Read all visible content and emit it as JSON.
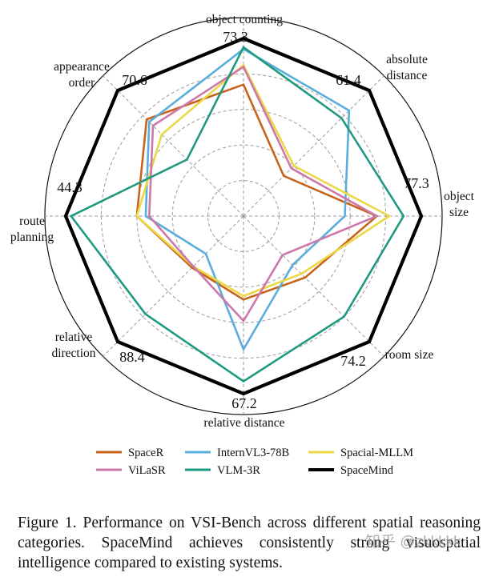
{
  "chart_data": {
    "type": "radar",
    "axes": [
      {
        "label": [
          "object counting"
        ],
        "max": "73.3"
      },
      {
        "label": [
          "absolute",
          "distance"
        ],
        "max": "61.4"
      },
      {
        "label": [
          "object",
          "size"
        ],
        "max": "77.3"
      },
      {
        "label": [
          "room size"
        ],
        "max": "74.2"
      },
      {
        "label": [
          "relative distance"
        ],
        "max": "67.2"
      },
      {
        "label": [
          "relative",
          "direction"
        ],
        "max": "88.4"
      },
      {
        "label": [
          "route",
          "planning"
        ],
        "max": "44.3"
      },
      {
        "label": [
          "appearance",
          "order"
        ],
        "max": "70.6"
      }
    ],
    "scale_note": "values normalized so SpaceMind = 1.0 on every axis",
    "grid_levels": [
      0.2,
      0.4,
      0.6,
      0.8
    ],
    "series": [
      {
        "name": "SpaceR",
        "color": "#c8631c",
        "values": [
          0.74,
          0.32,
          0.75,
          0.49,
          0.47,
          0.41,
          0.6,
          0.77
        ]
      },
      {
        "name": "InternVL3-78B",
        "color": "#5aaedc",
        "values": [
          0.94,
          0.84,
          0.57,
          0.39,
          0.75,
          0.3,
          0.55,
          0.75
        ]
      },
      {
        "name": "Spacial-MLLM",
        "color": "#ebd846",
        "values": [
          0.85,
          0.4,
          0.82,
          0.46,
          0.45,
          0.4,
          0.6,
          0.65
        ]
      },
      {
        "name": "ViLaSR",
        "color": "#cc78aa",
        "values": [
          0.84,
          0.38,
          0.75,
          0.31,
          0.59,
          0.4,
          0.53,
          0.72
        ]
      },
      {
        "name": "VLM-3R",
        "color": "#1f9a80",
        "values": [
          0.95,
          0.78,
          0.9,
          0.8,
          0.93,
          0.78,
          0.97,
          0.45
        ]
      },
      {
        "name": "SpaceMind",
        "color": "#000000",
        "values": [
          1.0,
          1.0,
          1.0,
          1.0,
          1.0,
          1.0,
          1.0,
          1.0
        ]
      }
    ]
  },
  "caption": "Figure 1. Performance on VSI-Bench across different spatial reasoning categories. SpaceMind achieves consistently strong visuospatial intelligence compared to existing systems.",
  "watermark": "知乎 @zkkkkk"
}
